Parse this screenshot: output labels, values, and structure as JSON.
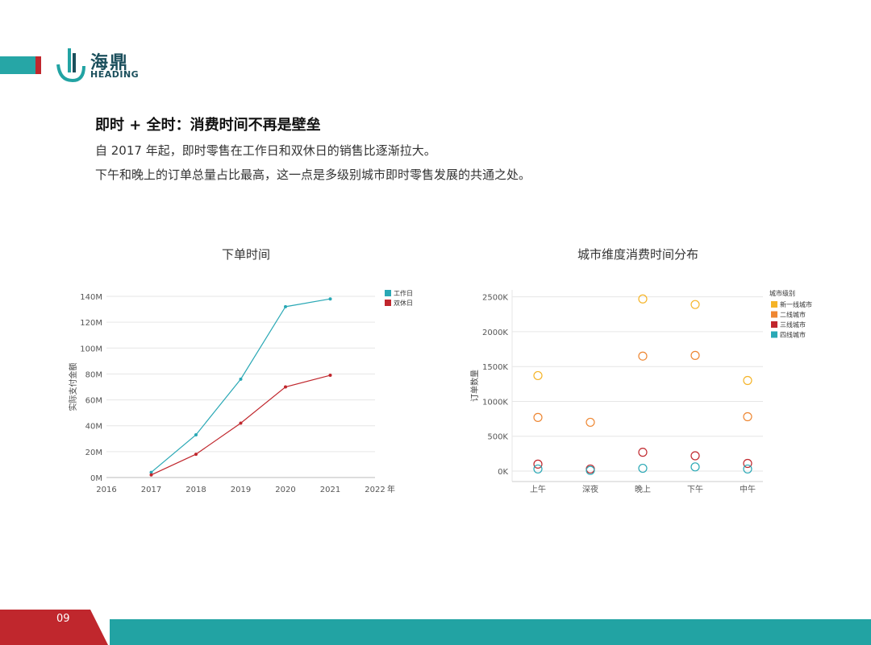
{
  "brand": {
    "name_cn": "海鼎",
    "name_en": "HEADING",
    "teal": "#26a6a6",
    "red": "#c0272d"
  },
  "heading": {
    "title": "即时 + 全时：消费时间不再是壁垒",
    "line1": "自 2017 年起，即时零售在工作日和双休日的销售比逐渐拉大。",
    "line2": "下午和晚上的订单总量占比最高，这一点是多级别城市即时零售发展的共通之处。"
  },
  "chart_data": [
    {
      "type": "line",
      "title": "下单时间",
      "ylabel": "实际支付金额",
      "xlabel": "年",
      "x": [
        2017,
        2018,
        2019,
        2020,
        2021
      ],
      "xlim": [
        2016,
        2022
      ],
      "xticks": [
        "2016",
        "2017",
        "2018",
        "2019",
        "2020",
        "2021",
        "2022"
      ],
      "ylim": [
        0,
        140
      ],
      "yticks": [
        "0M",
        "20M",
        "40M",
        "60M",
        "80M",
        "100M",
        "120M",
        "140M"
      ],
      "series": [
        {
          "name": "工作日",
          "color": "#2aa8b5",
          "values": [
            4,
            33,
            76,
            132,
            138
          ]
        },
        {
          "name": "双休日",
          "color": "#c0272d",
          "values": [
            2,
            18,
            42,
            70,
            79
          ]
        }
      ],
      "legend": "top-right",
      "grid": true
    },
    {
      "type": "scatter",
      "title": "城市维度消费时间分布",
      "ylabel": "订单数量",
      "categories": [
        "上午",
        "深夜",
        "晚上",
        "下午",
        "中午"
      ],
      "ylim": [
        -150,
        2600
      ],
      "yticks": [
        {
          "v": 0,
          "label": "0K"
        },
        {
          "v": 500,
          "label": "500K"
        },
        {
          "v": 1000,
          "label": "1000K"
        },
        {
          "v": 1500,
          "label": "1500K"
        },
        {
          "v": 2000,
          "label": "2000K"
        },
        {
          "v": 2500,
          "label": "2500K"
        }
      ],
      "legend_title": "城市级别",
      "series": [
        {
          "name": "新一线城市",
          "color": "#f5b428",
          "values": [
            1370,
            null,
            2470,
            2390,
            1300
          ]
        },
        {
          "name": "二线城市",
          "color": "#ee8733",
          "values": [
            770,
            700,
            1650,
            1660,
            780
          ]
        },
        {
          "name": "三线城市",
          "color": "#c0272d",
          "values": [
            100,
            30,
            270,
            220,
            110
          ]
        },
        {
          "name": "四线城市",
          "color": "#2aa8b5",
          "values": [
            30,
            10,
            40,
            60,
            30
          ]
        }
      ],
      "legend": "top-right",
      "grid": true
    }
  ],
  "footer": {
    "page": "09"
  }
}
